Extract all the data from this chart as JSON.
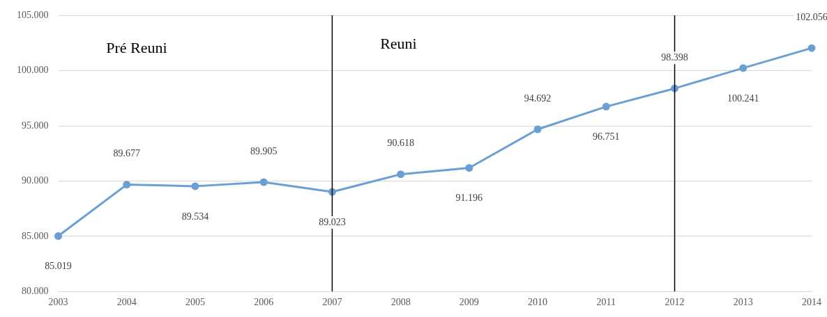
{
  "chart_data": {
    "type": "line",
    "categories": [
      "2003",
      "2004",
      "2005",
      "2006",
      "2007",
      "2008",
      "2009",
      "2010",
      "2011",
      "2012",
      "2013",
      "2014"
    ],
    "series": [
      {
        "color": "#6a9fd4",
        "values": [
          85019,
          89677,
          89534,
          89905,
          89023,
          90618,
          91196,
          94692,
          96751,
          98398,
          100241,
          102056
        ],
        "value_labels": [
          "85.019",
          "89.677",
          "89.534",
          "89.905",
          "89.023",
          "90.618",
          "91.196",
          "94.692",
          "96.751",
          "98.398",
          "100.241",
          "102.056"
        ]
      }
    ],
    "ylim": [
      80000,
      105000
    ],
    "yticks": [
      {
        "value": 80000,
        "label": "80.000"
      },
      {
        "value": 85000,
        "label": "85.000"
      },
      {
        "value": 90000,
        "label": "90.000"
      },
      {
        "value": 95000,
        "label": "95.000"
      },
      {
        "value": 100000,
        "label": "100.000"
      },
      {
        "value": 105000,
        "label": "105.000"
      }
    ],
    "grid": "y",
    "legend": false,
    "marker": "circle",
    "line_style": "solid",
    "ref_lines": [
      {
        "axis": "x",
        "value": "2007",
        "color": "#000000"
      },
      {
        "axis": "x",
        "value": "2012",
        "color": "#000000"
      }
    ],
    "annotations": [
      "Pré Reuni",
      "Reuni"
    ]
  }
}
